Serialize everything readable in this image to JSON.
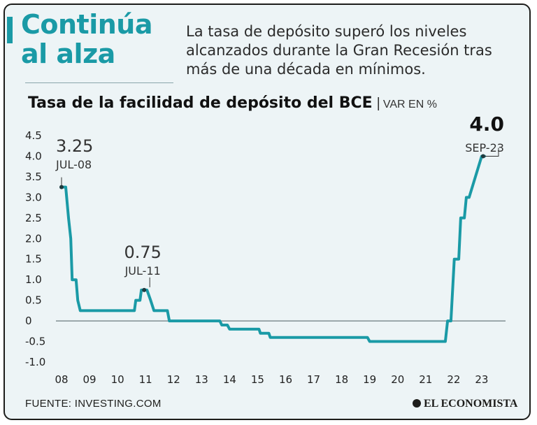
{
  "header": {
    "headline": "Continúa al alza",
    "intro": "La tasa de depósito superó los niveles alcanzados durante la Gran Recesión tras más de una década en mínimos."
  },
  "chart_title": "Tasa de la facilidad de depósito del BCE",
  "chart_unit": "VAR EN %",
  "footer": {
    "source": "FUENTE: INVESTING.COM",
    "brand": "EL ECONOMISTA"
  },
  "colors": {
    "accent": "#1a9aa6",
    "line": "#1a9aa6",
    "background": "#edf4f6",
    "zero_line": "#6b7a7f"
  },
  "chart_data": {
    "type": "line",
    "title": "Tasa de la facilidad de depósito del BCE",
    "ylabel": "VAR EN %",
    "xlabel": "",
    "xlim": [
      2008.0,
      2023.95
    ],
    "ylim": [
      -1.0,
      4.5
    ],
    "yticks": [
      {
        "value": 4.5,
        "label": "4.5"
      },
      {
        "value": 4.0,
        "label": "4.0"
      },
      {
        "value": 3.5,
        "label": "3.5"
      },
      {
        "value": 3.0,
        "label": "3.0"
      },
      {
        "value": 2.5,
        "label": "2.5"
      },
      {
        "value": 2.0,
        "label": "2.0"
      },
      {
        "value": 1.5,
        "label": "1.5"
      },
      {
        "value": 1.0,
        "label": "1.0"
      },
      {
        "value": 0.5,
        "label": "0.5"
      },
      {
        "value": 0.0,
        "label": "0"
      },
      {
        "value": -0.5,
        "label": "-0.5"
      },
      {
        "value": -1.0,
        "label": "-1.0"
      }
    ],
    "xticks": [
      {
        "value": 2008.0,
        "label": "08"
      },
      {
        "value": 2009.0,
        "label": "09"
      },
      {
        "value": 2010.0,
        "label": "10"
      },
      {
        "value": 2011.0,
        "label": "11"
      },
      {
        "value": 2012.0,
        "label": "12"
      },
      {
        "value": 2013.0,
        "label": "13"
      },
      {
        "value": 2014.0,
        "label": "14"
      },
      {
        "value": 2015.0,
        "label": "15"
      },
      {
        "value": 2016.0,
        "label": "16"
      },
      {
        "value": 2017.0,
        "label": "17"
      },
      {
        "value": 2018.0,
        "label": "18"
      },
      {
        "value": 2019.0,
        "label": "19"
      },
      {
        "value": 2020.0,
        "label": "20"
      },
      {
        "value": 2021.0,
        "label": "21"
      },
      {
        "value": 2022.0,
        "label": "22"
      },
      {
        "value": 2023.0,
        "label": "23"
      }
    ],
    "series": [
      {
        "name": "Tasa de la facilidad de depósito",
        "points": [
          {
            "x": 2008.0,
            "y": 3.25
          },
          {
            "x": 2008.15,
            "y": 3.25
          },
          {
            "x": 2008.15,
            "y": 3.25
          },
          {
            "x": 2008.25,
            "y": 2.5
          },
          {
            "x": 2008.33,
            "y": 2.0
          },
          {
            "x": 2008.38,
            "y": 1.0
          },
          {
            "x": 2008.52,
            "y": 1.0
          },
          {
            "x": 2008.58,
            "y": 0.5
          },
          {
            "x": 2008.67,
            "y": 0.25
          },
          {
            "x": 2010.6,
            "y": 0.25
          },
          {
            "x": 2010.65,
            "y": 0.5
          },
          {
            "x": 2010.8,
            "y": 0.5
          },
          {
            "x": 2010.85,
            "y": 0.75
          },
          {
            "x": 2011.05,
            "y": 0.75
          },
          {
            "x": 2011.18,
            "y": 0.5
          },
          {
            "x": 2011.3,
            "y": 0.25
          },
          {
            "x": 2011.78,
            "y": 0.25
          },
          {
            "x": 2011.85,
            "y": 0.0
          },
          {
            "x": 2013.65,
            "y": 0.0
          },
          {
            "x": 2013.72,
            "y": -0.1
          },
          {
            "x": 2013.92,
            "y": -0.1
          },
          {
            "x": 2014.0,
            "y": -0.2
          },
          {
            "x": 2015.05,
            "y": -0.2
          },
          {
            "x": 2015.1,
            "y": -0.3
          },
          {
            "x": 2015.4,
            "y": -0.3
          },
          {
            "x": 2015.45,
            "y": -0.4
          },
          {
            "x": 2018.92,
            "y": -0.4
          },
          {
            "x": 2019.0,
            "y": -0.5
          },
          {
            "x": 2021.7,
            "y": -0.5
          },
          {
            "x": 2021.78,
            "y": 0.0
          },
          {
            "x": 2021.9,
            "y": 0.0
          },
          {
            "x": 2022.02,
            "y": 1.5
          },
          {
            "x": 2022.18,
            "y": 1.5
          },
          {
            "x": 2022.25,
            "y": 2.5
          },
          {
            "x": 2022.38,
            "y": 2.5
          },
          {
            "x": 2022.45,
            "y": 3.0
          },
          {
            "x": 2022.55,
            "y": 3.0
          },
          {
            "x": 2023.0,
            "y": 4.0
          },
          {
            "x": 2023.1,
            "y": 4.0
          }
        ]
      }
    ],
    "annotations": [
      {
        "x": 2008.0,
        "y": 3.25,
        "value": "3.25",
        "date": "JUL-08",
        "bold": false
      },
      {
        "x": 2010.95,
        "y": 0.75,
        "value": "0.75",
        "date": "JUL-11",
        "bold": false
      },
      {
        "x": 2023.05,
        "y": 4.0,
        "value": "4.0",
        "date": "SEP-23",
        "bold": true
      }
    ],
    "grid": false,
    "legend": "none"
  }
}
